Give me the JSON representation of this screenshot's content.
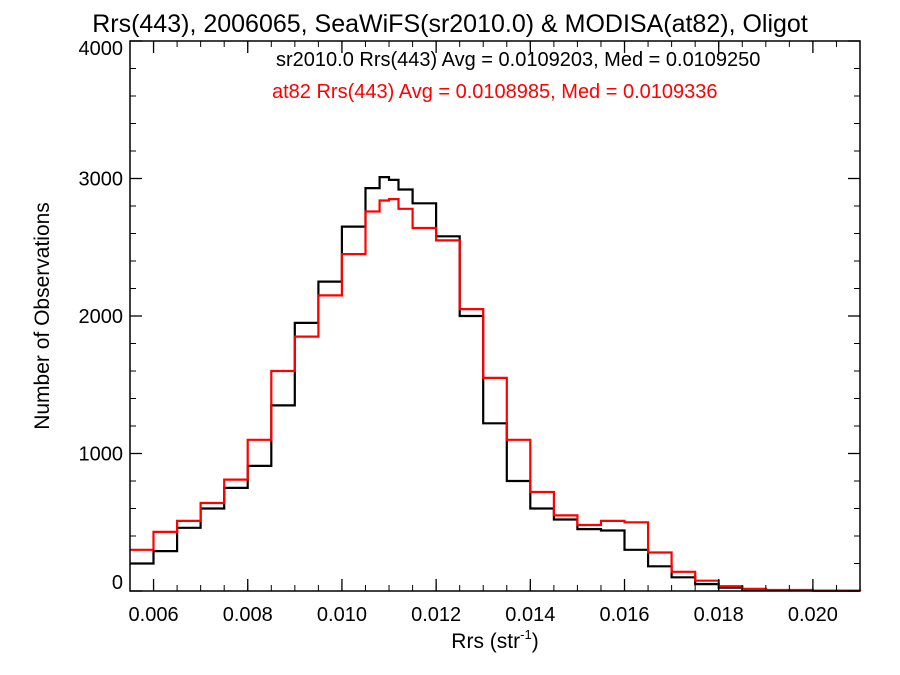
{
  "chart_data": {
    "type": "line",
    "title": "Rrs(443), 2006065, SeaWiFS(sr2010.0) & MODISA(at82), Oligot",
    "xlabel_main": "Rrs (str",
    "xlabel_sup": "-1",
    "xlabel_tail": ")",
    "ylabel": "Number of Observations",
    "xlim": [
      0.0055,
      0.021
    ],
    "ylim": [
      0,
      4000
    ],
    "x_ticks": [
      "0.006",
      "0.008",
      "0.010",
      "0.012",
      "0.014",
      "0.016",
      "0.018",
      "0.020"
    ],
    "x_tick_values": [
      0.006,
      0.008,
      0.01,
      0.012,
      0.014,
      0.016,
      0.018,
      0.02
    ],
    "y_ticks": [
      "0",
      "1000",
      "2000",
      "3000",
      "4000"
    ],
    "y_tick_values": [
      0,
      1000,
      2000,
      3000,
      4000
    ],
    "x_minor_step": 0.0005,
    "y_minor_step": 200,
    "legend_placement": "top-right",
    "grid": false,
    "series": [
      {
        "label": "sr2010.0 Rrs(443) Avg = 0.0109203, Med = 0.0109250",
        "color": "#000000",
        "x": [
          0.0055,
          0.006,
          0.0065,
          0.007,
          0.0075,
          0.008,
          0.0085,
          0.009,
          0.0095,
          0.01,
          0.0105,
          0.0108,
          0.011,
          0.0112,
          0.0115,
          0.012,
          0.0125,
          0.013,
          0.0135,
          0.014,
          0.0145,
          0.015,
          0.0155,
          0.016,
          0.0165,
          0.017,
          0.0175,
          0.018,
          0.0185,
          0.019,
          0.02,
          0.021
        ],
        "values": [
          200,
          290,
          460,
          600,
          750,
          910,
          1350,
          1950,
          2250,
          2650,
          2930,
          3010,
          2990,
          2920,
          2820,
          2580,
          2000,
          1220,
          800,
          600,
          520,
          450,
          440,
          300,
          180,
          100,
          50,
          25,
          12,
          6,
          3,
          0
        ]
      },
      {
        "label": "at82 Rrs(443) Avg = 0.0108985, Med = 0.0109336",
        "color": "#ff0000",
        "x": [
          0.0055,
          0.006,
          0.0065,
          0.007,
          0.0075,
          0.008,
          0.0085,
          0.009,
          0.0095,
          0.01,
          0.0105,
          0.0108,
          0.011,
          0.0112,
          0.0115,
          0.012,
          0.0125,
          0.013,
          0.0135,
          0.014,
          0.0145,
          0.015,
          0.0155,
          0.016,
          0.0165,
          0.017,
          0.0175,
          0.018,
          0.0185,
          0.019,
          0.02,
          0.021
        ],
        "values": [
          300,
          430,
          510,
          640,
          810,
          1100,
          1600,
          1850,
          2150,
          2450,
          2760,
          2840,
          2850,
          2780,
          2640,
          2550,
          2050,
          1550,
          1100,
          720,
          550,
          480,
          510,
          500,
          280,
          140,
          75,
          35,
          15,
          7,
          3,
          0
        ]
      }
    ]
  }
}
